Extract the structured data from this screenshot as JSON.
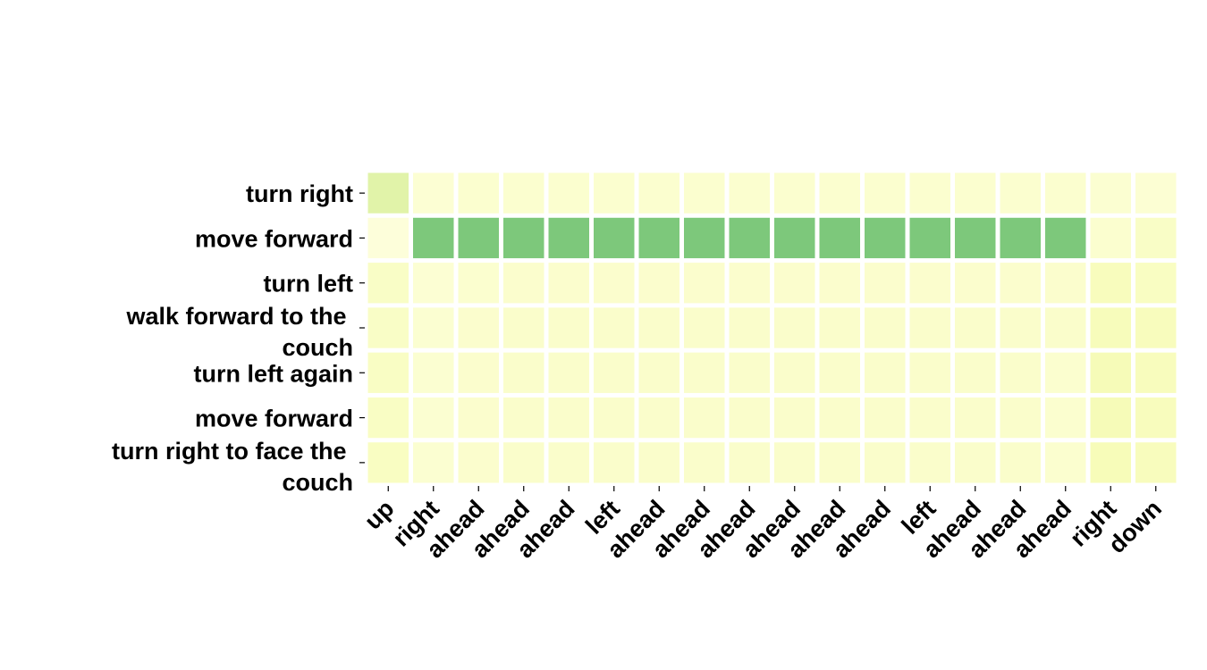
{
  "chart_data": {
    "type": "heatmap",
    "rows": [
      "turn right",
      "move forward",
      "turn left",
      "walk forward to the couch",
      "turn left again",
      "move forward",
      "turn right to face the couch"
    ],
    "columns": [
      "up",
      "right",
      "ahead",
      "ahead",
      "ahead",
      "left",
      "ahead",
      "ahead",
      "ahead",
      "ahead",
      "ahead",
      "ahead",
      "left",
      "ahead",
      "ahead",
      "ahead",
      "right",
      "down"
    ],
    "values": [
      [
        0.35,
        0.08,
        0.1,
        0.1,
        0.1,
        0.1,
        0.1,
        0.1,
        0.1,
        0.1,
        0.1,
        0.1,
        0.1,
        0.1,
        0.1,
        0.1,
        0.09,
        0.08
      ],
      [
        0.05,
        0.78,
        0.78,
        0.78,
        0.78,
        0.78,
        0.78,
        0.78,
        0.78,
        0.78,
        0.78,
        0.78,
        0.78,
        0.78,
        0.78,
        0.78,
        0.1,
        0.14
      ],
      [
        0.14,
        0.08,
        0.1,
        0.11,
        0.11,
        0.11,
        0.11,
        0.11,
        0.11,
        0.11,
        0.11,
        0.11,
        0.11,
        0.11,
        0.11,
        0.11,
        0.18,
        0.16
      ],
      [
        0.14,
        0.09,
        0.11,
        0.12,
        0.12,
        0.12,
        0.12,
        0.12,
        0.12,
        0.12,
        0.12,
        0.12,
        0.12,
        0.12,
        0.12,
        0.12,
        0.19,
        0.18
      ],
      [
        0.15,
        0.09,
        0.11,
        0.12,
        0.12,
        0.12,
        0.12,
        0.12,
        0.12,
        0.12,
        0.12,
        0.12,
        0.12,
        0.12,
        0.12,
        0.1,
        0.21,
        0.18
      ],
      [
        0.15,
        0.09,
        0.11,
        0.12,
        0.12,
        0.12,
        0.12,
        0.12,
        0.12,
        0.12,
        0.12,
        0.12,
        0.12,
        0.12,
        0.12,
        0.1,
        0.21,
        0.18
      ],
      [
        0.16,
        0.09,
        0.11,
        0.12,
        0.12,
        0.12,
        0.12,
        0.12,
        0.12,
        0.12,
        0.12,
        0.12,
        0.12,
        0.12,
        0.12,
        0.1,
        0.2,
        0.18
      ]
    ],
    "colormap": [
      "#ffffe5",
      "#f7fcb9",
      "#d9f0a3",
      "#addd8e",
      "#78c679",
      "#41ab5d"
    ],
    "grid": false,
    "legend": "none"
  }
}
